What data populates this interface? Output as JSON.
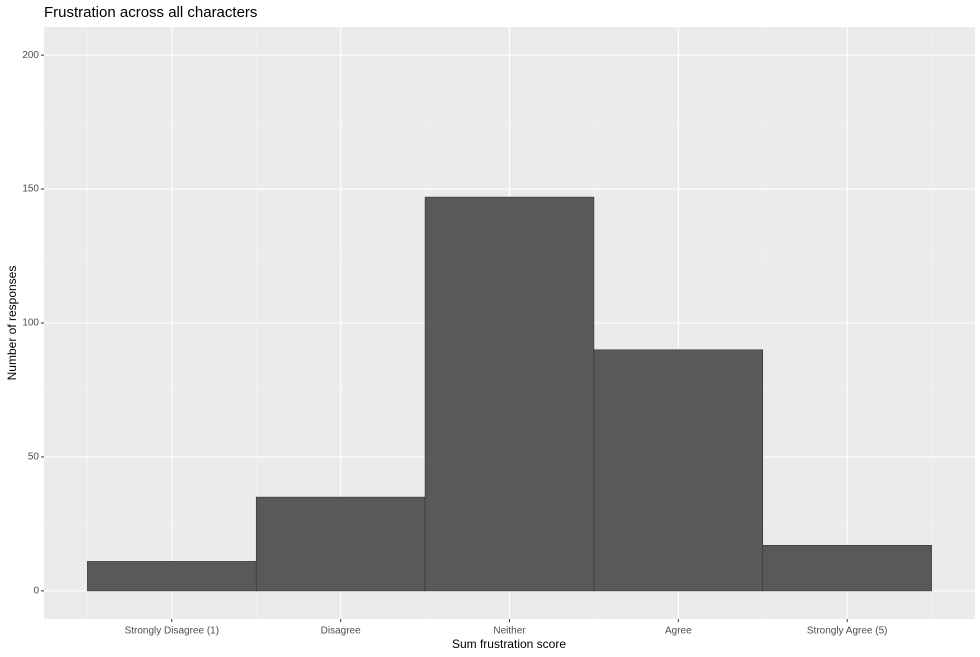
{
  "chart_data": {
    "type": "bar",
    "title": "Frustration across all characters",
    "x_label": "Sum frustration score",
    "y_label": "Number of responses",
    "categories": [
      "Strongly Disagree (1)",
      "Disagree",
      "Neither",
      "Agree",
      "Strongly Agree (5)"
    ],
    "values": [
      11,
      35,
      147,
      90,
      17
    ],
    "color": "#595959",
    "ylim": [
      -10.5,
      210.5
    ],
    "yticks": [
      0,
      50,
      100,
      150,
      200
    ],
    "grid": true
  }
}
